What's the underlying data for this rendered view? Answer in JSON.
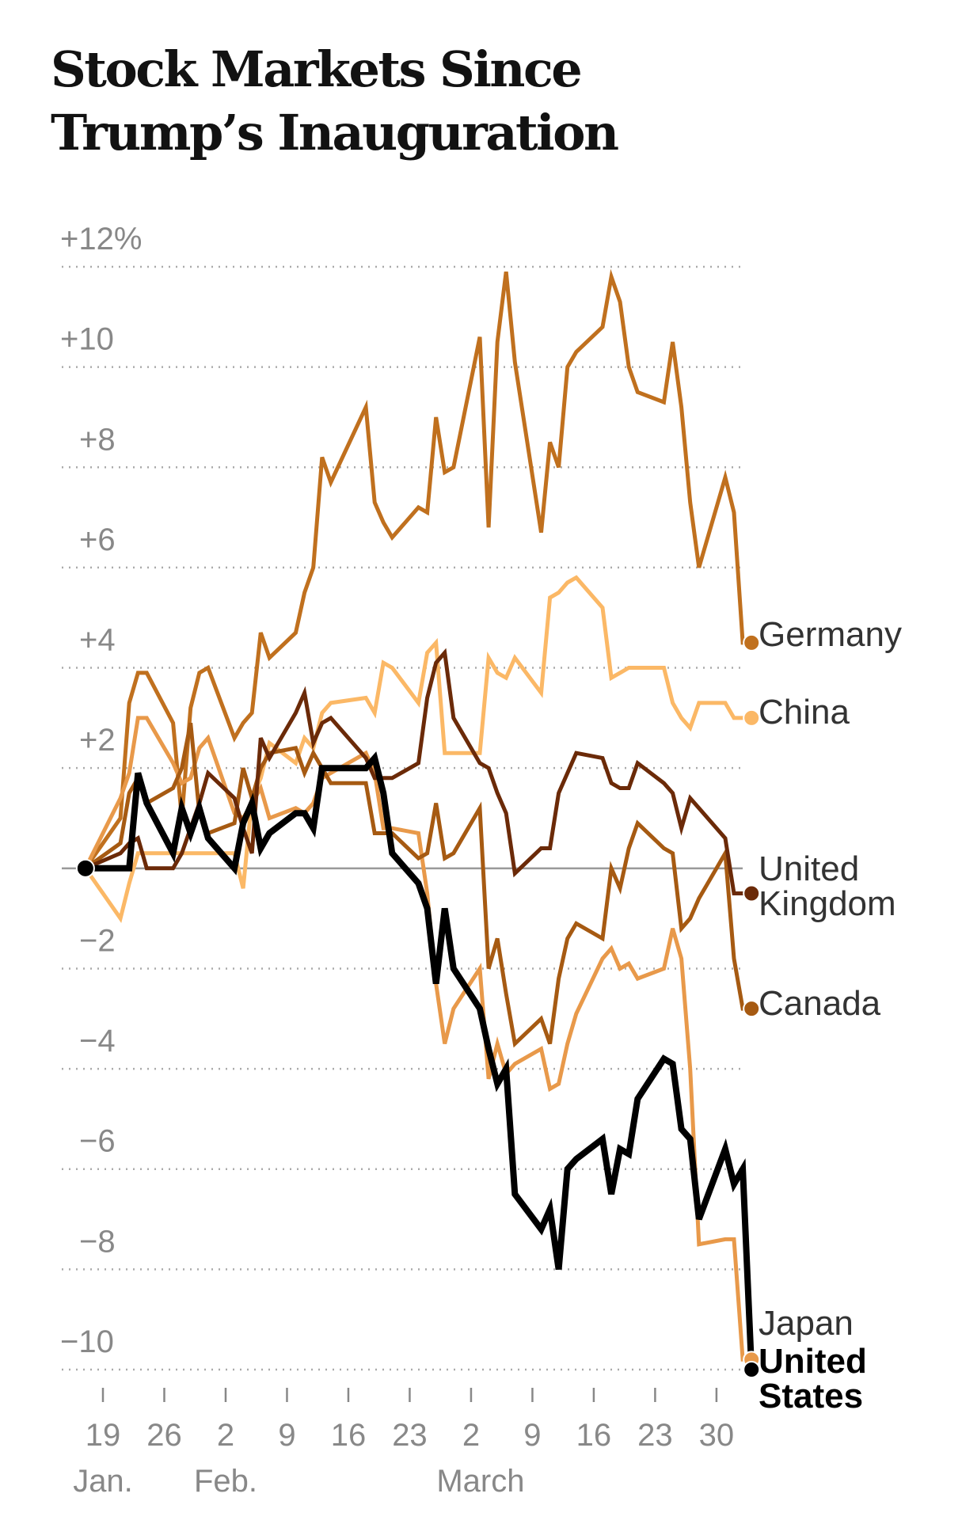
{
  "title": "Stock Markets Since Trump’s Inauguration",
  "chart_data": {
    "type": "line",
    "title": "Stock Markets Since Trump’s Inauguration",
    "xlabel": "",
    "ylabel": "",
    "ylim": [
      -10,
      12
    ],
    "y_ticks": [
      {
        "value": 12,
        "label": "+12%"
      },
      {
        "value": 10,
        "label": "+10"
      },
      {
        "value": 8,
        "label": "+8"
      },
      {
        "value": 6,
        "label": "+6"
      },
      {
        "value": 4,
        "label": "+4"
      },
      {
        "value": 2,
        "label": "+2"
      },
      {
        "value": 0,
        "label": ""
      },
      {
        "value": -2,
        "label": "−2"
      },
      {
        "value": -4,
        "label": "−4"
      },
      {
        "value": -6,
        "label": "−6"
      },
      {
        "value": -8,
        "label": "−8"
      },
      {
        "value": -10,
        "label": "−10"
      }
    ],
    "x_unit": "days since Jan. 19",
    "x_ticks": [
      {
        "day": 0,
        "label": "19",
        "month": "Jan."
      },
      {
        "day": 7,
        "label": "26",
        "month": ""
      },
      {
        "day": 14,
        "label": "2",
        "month": "Feb."
      },
      {
        "day": 21,
        "label": "9",
        "month": ""
      },
      {
        "day": 28,
        "label": "16",
        "month": ""
      },
      {
        "day": 35,
        "label": "23",
        "month": ""
      },
      {
        "day": 42,
        "label": "2",
        "month": "March"
      },
      {
        "day": 49,
        "label": "9",
        "month": ""
      },
      {
        "day": 56,
        "label": "16",
        "month": ""
      },
      {
        "day": 63,
        "label": "23",
        "month": ""
      },
      {
        "day": 70,
        "label": "30",
        "month": ""
      }
    ],
    "grid": true,
    "legend": "end-of-line labels, right",
    "x": [
      -2,
      2,
      3,
      4,
      5,
      8,
      9,
      10,
      11,
      12,
      15,
      16,
      17,
      18,
      19,
      22,
      23,
      24,
      25,
      26,
      30,
      31,
      32,
      33,
      36,
      37,
      38,
      39,
      40,
      43,
      44,
      45,
      46,
      47,
      50,
      51,
      52,
      53,
      54,
      57,
      58,
      59,
      60,
      61,
      64,
      65,
      66,
      67,
      68,
      71,
      72,
      73,
      74
    ],
    "series": [
      {
        "name": "Germany",
        "label": "Germany",
        "color": "#C0701E",
        "values": [
          0,
          1.0,
          3.3,
          3.9,
          3.9,
          2.9,
          1.0,
          3.2,
          3.9,
          4.0,
          2.6,
          2.9,
          3.1,
          4.7,
          4.2,
          4.7,
          5.5,
          6.0,
          8.2,
          7.7,
          9.2,
          7.3,
          6.9,
          6.6,
          7.2,
          7.1,
          9.0,
          7.9,
          8.0,
          10.6,
          6.8,
          10.5,
          11.9,
          10.1,
          6.7,
          8.5,
          8.0,
          10.0,
          10.3,
          10.8,
          11.8,
          11.3,
          10.0,
          9.5,
          9.3,
          10.5,
          9.2,
          7.3,
          6.0,
          7.8,
          7.1,
          4.5,
          4.5
        ]
      },
      {
        "name": "China",
        "label": "China",
        "color": "#FBB866",
        "values": [
          0,
          -1.0,
          -0.3,
          0.3,
          0.3,
          0.3,
          0.3,
          0.3,
          0.3,
          0.3,
          0.3,
          -0.4,
          1.4,
          1.8,
          2.5,
          2.1,
          2.6,
          2.4,
          3.1,
          3.3,
          3.4,
          3.1,
          4.1,
          4.0,
          3.3,
          4.3,
          4.5,
          2.3,
          2.3,
          2.3,
          4.2,
          3.9,
          3.8,
          4.2,
          3.5,
          5.4,
          5.5,
          5.7,
          5.8,
          5.2,
          3.8,
          3.9,
          4.0,
          4.0,
          4.0,
          3.3,
          3.0,
          2.8,
          3.3,
          3.3,
          3.0,
          3.0,
          3.0
        ]
      },
      {
        "name": "United Kingdom",
        "label": "United Kingdom",
        "color": "#6B2A08",
        "values": [
          0,
          0.3,
          0.5,
          0.6,
          0.0,
          0.0,
          0.3,
          0.8,
          1.3,
          1.9,
          1.4,
          0.8,
          0.3,
          2.6,
          2.2,
          3.1,
          3.5,
          2.5,
          2.9,
          3.0,
          2.2,
          1.8,
          1.8,
          1.8,
          2.1,
          3.4,
          4.1,
          4.3,
          3.0,
          2.1,
          2.0,
          1.5,
          1.1,
          -0.1,
          0.4,
          0.4,
          1.5,
          1.9,
          2.3,
          2.2,
          1.7,
          1.6,
          1.6,
          2.1,
          1.7,
          1.5,
          0.8,
          1.4,
          1.2,
          0.6,
          -0.5,
          -0.5,
          -0.5
        ]
      },
      {
        "name": "Canada",
        "label": "Canada",
        "color": "#A65A12",
        "values": [
          0,
          0.5,
          1.5,
          1.8,
          1.3,
          1.6,
          2.0,
          2.9,
          1.1,
          0.7,
          0.9,
          2.0,
          1.4,
          2.0,
          2.3,
          2.4,
          1.9,
          2.3,
          2.0,
          1.7,
          1.7,
          0.7,
          0.7,
          0.7,
          0.2,
          0.3,
          1.3,
          0.2,
          0.3,
          1.2,
          -2.0,
          -1.4,
          -2.5,
          -3.5,
          -3.0,
          -3.5,
          -2.2,
          -1.4,
          -1.1,
          -1.4,
          0.0,
          -0.4,
          0.4,
          0.9,
          0.4,
          0.3,
          -1.2,
          -1.0,
          -0.6,
          0.3,
          -1.8,
          -2.8,
          -2.8
        ]
      },
      {
        "name": "Japan",
        "label": "Japan",
        "color": "#E8994A",
        "values": [
          0,
          1.4,
          1.9,
          3.0,
          3.0,
          2.1,
          1.7,
          1.8,
          2.4,
          2.6,
          1.1,
          1.0,
          1.3,
          1.6,
          1.0,
          1.2,
          1.1,
          1.3,
          1.8,
          1.9,
          2.3,
          1.9,
          0.8,
          0.8,
          0.7,
          -0.5,
          -2.3,
          -3.5,
          -2.8,
          -2.0,
          -4.2,
          -3.5,
          -4.1,
          -3.9,
          -3.6,
          -4.4,
          -4.3,
          -3.5,
          -2.9,
          -1.8,
          -1.6,
          -2.0,
          -1.9,
          -2.2,
          -2.0,
          -1.2,
          -1.8,
          -4.0,
          -7.5,
          -7.4,
          -7.4,
          -9.8,
          -9.8
        ]
      },
      {
        "name": "United States",
        "label": "United States",
        "color": "#000000",
        "values": [
          0,
          0,
          0,
          1.9,
          1.3,
          0.3,
          1.2,
          0.7,
          1.2,
          0.6,
          0.0,
          0.9,
          1.3,
          0.4,
          0.7,
          1.1,
          1.1,
          0.8,
          2.0,
          2.0,
          2.0,
          2.2,
          1.5,
          0.3,
          -0.3,
          -0.8,
          -2.3,
          -0.8,
          -2.0,
          -2.8,
          -3.6,
          -4.3,
          -4.0,
          -6.5,
          -7.2,
          -6.8,
          -8.0,
          -6.0,
          -5.8,
          -5.4,
          -6.5,
          -5.6,
          -5.7,
          -4.6,
          -3.8,
          -3.9,
          -5.2,
          -5.4,
          -7.0,
          -5.6,
          -6.3,
          -6.0,
          -10.0
        ]
      }
    ]
  },
  "labels": {
    "germany": "Germany",
    "china": "China",
    "uk_line1": "United",
    "uk_line2": "Kingdom",
    "canada": "Canada",
    "japan": "Japan",
    "us_line1": "United",
    "us_line2": "States"
  }
}
